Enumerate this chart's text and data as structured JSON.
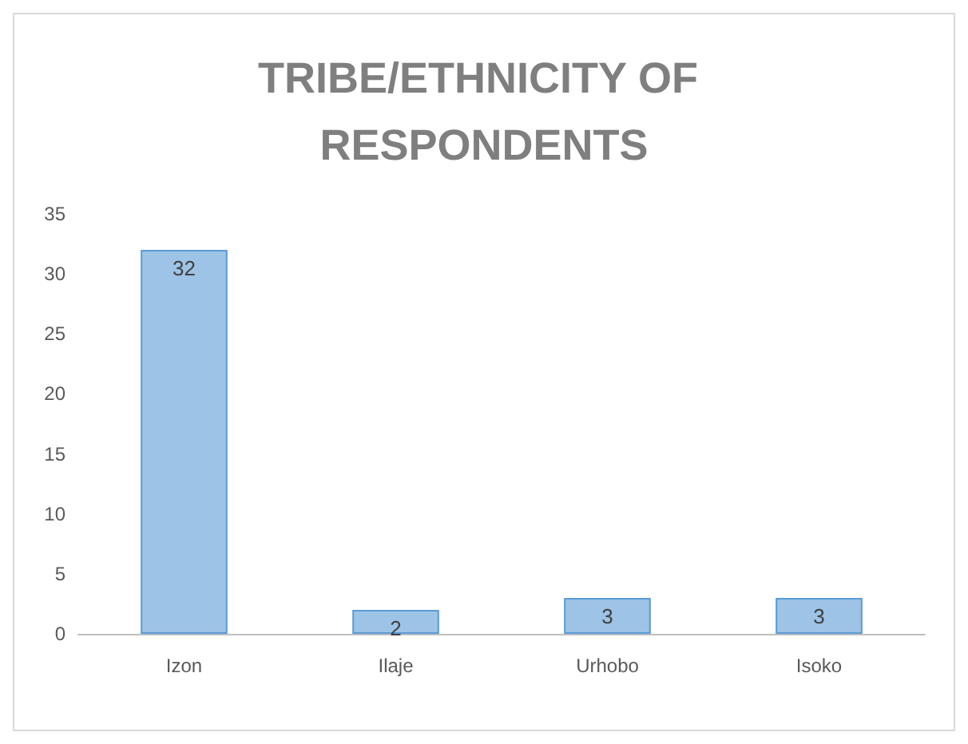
{
  "chart_data": {
    "type": "bar",
    "title": "TRIBE/ETHNICITY OF RESPONDENTS",
    "categories": [
      "Izon",
      "Ilaje",
      "Urhobo",
      "Isoko"
    ],
    "values": [
      32,
      2,
      3,
      3
    ],
    "color": "#9dc3e6",
    "ylim": [
      0,
      35
    ],
    "yticks": [
      0,
      5,
      10,
      15,
      20,
      25,
      30,
      35
    ],
    "grid": false,
    "data_labels": true
  }
}
